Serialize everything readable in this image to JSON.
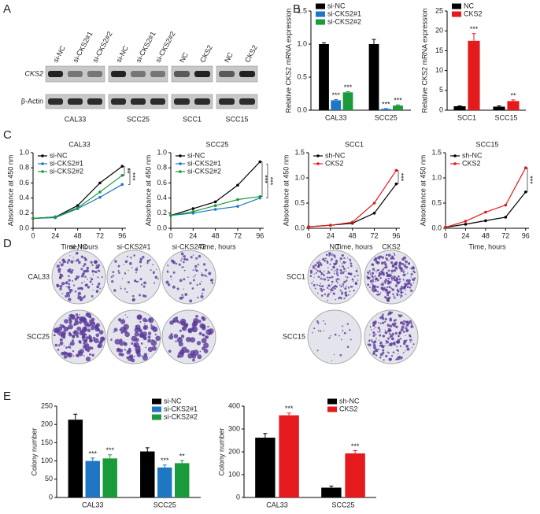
{
  "panel_letters": [
    "A",
    "B",
    "C",
    "D",
    "E"
  ],
  "blot": {
    "rows": [
      "CKS2",
      "β-Actin"
    ],
    "groups": [
      "CAL33",
      "SCC25",
      "SCC1",
      "SCC15"
    ],
    "lanes": [
      [
        "si-NC",
        "si-CKS2#1",
        "si-CKS2#2"
      ],
      [
        "si-NC",
        "si-CKS2#1",
        "si-CKS2#2"
      ],
      [
        "NC",
        "CKS2"
      ],
      [
        "NC",
        "CKS2"
      ]
    ]
  },
  "colony": {
    "left_columns": [
      "si-NC",
      "si-CKS2#1",
      "si-CKS2#2"
    ],
    "left_rows": [
      "CAL33",
      "SCC25"
    ],
    "right_columns": [
      "NC",
      "CKS2"
    ],
    "right_rows": [
      "SCC1",
      "SCC15"
    ]
  },
  "chart_data": [
    {
      "type": "bar",
      "ylabel": "Relative CKS2 mRNA expression",
      "categories": [
        "CAL33",
        "SCC25"
      ],
      "ylim": [
        0,
        1.5
      ],
      "yticks": [
        {
          "value": 0,
          "label": "0.0"
        },
        0.5,
        {
          "value": 1,
          "label": "1.0"
        },
        1.5
      ],
      "legend": "upper left",
      "series": [
        {
          "name": "si-NC",
          "color": "#000000",
          "values": [
            1.0,
            1.0
          ],
          "errors": [
            0.02,
            0.07
          ],
          "annotations": [
            null,
            null
          ]
        },
        {
          "name": "si-CKS2#1",
          "color": "#1f77c4",
          "values": [
            0.15,
            0.02
          ],
          "errors": [
            0.01,
            0.005
          ],
          "annotations": [
            "***",
            "***"
          ]
        },
        {
          "name": "si-CKS2#2",
          "color": "#1a9a3a",
          "values": [
            0.27,
            0.07
          ],
          "errors": [
            0.01,
            0.01
          ],
          "annotations": [
            "***",
            "***"
          ]
        }
      ]
    },
    {
      "type": "bar",
      "ylabel": "Relative CKS2 mRNA expression",
      "categories": [
        "SCC1",
        "SCC15"
      ],
      "ylim": [
        0,
        25
      ],
      "yticks": [
        0,
        5,
        10,
        15,
        20,
        25
      ],
      "legend": "upper left",
      "series": [
        {
          "name": "NC",
          "color": "#000000",
          "values": [
            1.0,
            0.9
          ],
          "errors": [
            0.1,
            0.2
          ],
          "annotations": [
            null,
            null
          ]
        },
        {
          "name": "CKS2",
          "color": "#e41a1c",
          "values": [
            17.5,
            2.3
          ],
          "errors": [
            1.8,
            0.3
          ],
          "annotations": [
            "***",
            "**"
          ]
        }
      ]
    },
    {
      "type": "line",
      "title": "CAL33",
      "xlabel": "Time, hours",
      "ylabel": "Absorbance at 450 nm",
      "x": [
        0,
        24,
        48,
        72,
        96
      ],
      "xlim": [
        0,
        100
      ],
      "xticks": [
        0,
        24,
        48,
        72,
        96
      ],
      "ylim": [
        0,
        1
      ],
      "yticks": [
        {
          "value": 0,
          "label": "0.0"
        },
        0.2,
        0.4,
        0.6,
        0.8,
        {
          "value": 1,
          "label": "1.0"
        }
      ],
      "legend": "upper left",
      "annotations": [
        "**",
        "***"
      ],
      "series": [
        {
          "name": "si-NC",
          "color": "#000000",
          "values": [
            0.13,
            0.15,
            0.3,
            0.6,
            0.82
          ]
        },
        {
          "name": "si-CKS2#1",
          "color": "#1f77c4",
          "values": [
            0.13,
            0.14,
            0.26,
            0.41,
            0.58
          ]
        },
        {
          "name": "si-CKS2#2",
          "color": "#1a9a3a",
          "values": [
            0.13,
            0.15,
            0.27,
            0.48,
            0.7
          ]
        }
      ]
    },
    {
      "type": "line",
      "title": "SCC25",
      "xlabel": "Time, hours",
      "ylabel": "Absorbance at 450 nm",
      "x": [
        0,
        24,
        48,
        72,
        96
      ],
      "xlim": [
        0,
        100
      ],
      "xticks": [
        0,
        24,
        48,
        72,
        96
      ],
      "ylim": [
        0,
        1
      ],
      "yticks": [
        {
          "value": 0,
          "label": "0.0"
        },
        0.2,
        0.4,
        0.6,
        0.8,
        {
          "value": 1,
          "label": "1.0"
        }
      ],
      "legend": "upper left",
      "annotations": [
        "***",
        "***"
      ],
      "series": [
        {
          "name": "si-NC",
          "color": "#000000",
          "values": [
            0.17,
            0.26,
            0.35,
            0.57,
            0.88
          ]
        },
        {
          "name": "si-CKS2#1",
          "color": "#1f77c4",
          "values": [
            0.17,
            0.2,
            0.25,
            0.29,
            0.4
          ]
        },
        {
          "name": "si-CKS2#2",
          "color": "#1a9a3a",
          "values": [
            0.17,
            0.22,
            0.3,
            0.38,
            0.42
          ]
        }
      ]
    },
    {
      "type": "line",
      "title": "SCC1",
      "xlabel": "Time, hours",
      "ylabel": "Absorbance at 450 nm",
      "x": [
        0,
        24,
        48,
        72,
        96
      ],
      "xlim": [
        0,
        100
      ],
      "xticks": [
        0,
        24,
        48,
        72,
        96
      ],
      "ylim": [
        0,
        1.5
      ],
      "yticks": [
        {
          "value": 0,
          "label": "0.0"
        },
        0.5,
        {
          "value": 1,
          "label": "1.0"
        },
        1.5
      ],
      "legend": "upper left",
      "annotations": [
        "***"
      ],
      "series": [
        {
          "name": "sh-NC",
          "color": "#000000",
          "values": [
            0.03,
            0.06,
            0.1,
            0.3,
            0.88
          ]
        },
        {
          "name": "CKS2",
          "color": "#e41a1c",
          "values": [
            0.03,
            0.06,
            0.12,
            0.5,
            1.15
          ]
        }
      ]
    },
    {
      "type": "line",
      "title": "SCC15",
      "xlabel": "Time, hours",
      "ylabel": "Absorbance at 450 nm",
      "x": [
        0,
        24,
        48,
        72,
        96
      ],
      "xlim": [
        0,
        100
      ],
      "xticks": [
        0,
        24,
        48,
        72,
        96
      ],
      "ylim": [
        0,
        1.5
      ],
      "yticks": [
        {
          "value": 0,
          "label": "0.0"
        },
        0.5,
        {
          "value": 1,
          "label": "1.0"
        },
        1.5
      ],
      "legend": "upper left",
      "annotations": [
        "***"
      ],
      "series": [
        {
          "name": "sh-NC",
          "color": "#000000",
          "values": [
            0.02,
            0.08,
            0.15,
            0.22,
            0.72
          ]
        },
        {
          "name": "CKS2",
          "color": "#e41a1c",
          "values": [
            0.02,
            0.14,
            0.32,
            0.46,
            1.2
          ]
        }
      ]
    },
    {
      "type": "bar",
      "ylabel": "Colony number",
      "categories": [
        "CAL33",
        "SCC25"
      ],
      "ylim": [
        0,
        250
      ],
      "yticks": [
        0,
        50,
        100,
        150,
        200,
        250
      ],
      "legend": "upper right",
      "series": [
        {
          "name": "si-NC",
          "color": "#000000",
          "values": [
            213,
            126
          ],
          "errors": [
            15,
            10
          ],
          "annotations": [
            null,
            null
          ]
        },
        {
          "name": "si-CKS2#1",
          "color": "#1f77c4",
          "values": [
            100,
            82
          ],
          "errors": [
            8,
            7
          ],
          "annotations": [
            "***",
            "***"
          ]
        },
        {
          "name": "si-CKS2#2",
          "color": "#1a9a3a",
          "values": [
            107,
            94
          ],
          "errors": [
            10,
            7
          ],
          "annotations": [
            "***",
            "**"
          ]
        }
      ]
    },
    {
      "type": "bar",
      "ylabel": "Colony number",
      "categories": [
        "CAL33",
        "SCC25"
      ],
      "ylim": [
        0,
        400
      ],
      "yticks": [
        0,
        100,
        200,
        300,
        400
      ],
      "legend": "upper right",
      "series": [
        {
          "name": "sh-NC",
          "color": "#000000",
          "values": [
            262,
            43
          ],
          "errors": [
            18,
            7
          ],
          "annotations": [
            null,
            null
          ]
        },
        {
          "name": "CKS2",
          "color": "#e41a1c",
          "values": [
            360,
            193
          ],
          "errors": [
            10,
            12
          ],
          "annotations": [
            "***",
            "***"
          ]
        }
      ]
    }
  ]
}
